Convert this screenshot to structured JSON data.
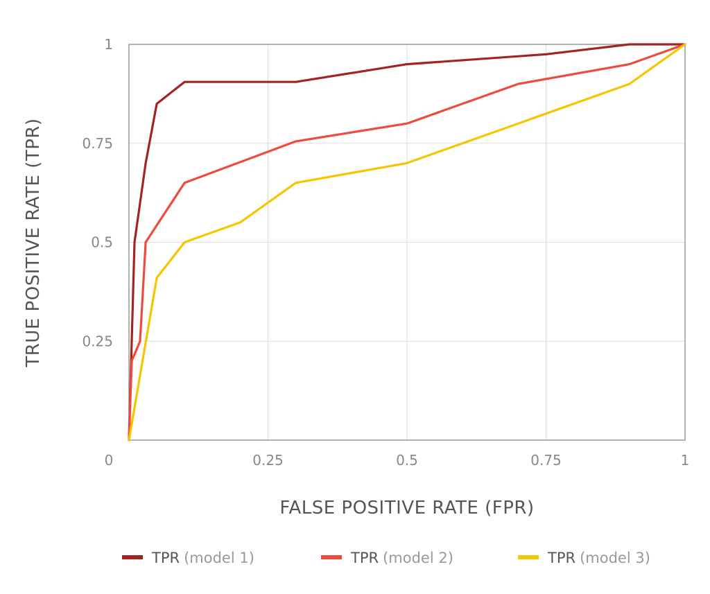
{
  "chart_data": {
    "type": "line",
    "xlabel": "FALSE POSITIVE RATE (FPR)",
    "ylabel": "TRUE POSITIVE RATE (TPR)",
    "xlim": [
      0,
      1
    ],
    "ylim": [
      0,
      1
    ],
    "x_ticks": [
      "0",
      "0.25",
      "0.5",
      "0.75",
      "1"
    ],
    "y_ticks": [
      "0.25",
      "0.5",
      "0.75",
      "1"
    ],
    "grid": true,
    "legend_position": "bottom",
    "series": [
      {
        "name": "TPR",
        "name_suffix": "(model 1)",
        "color": "#a32322",
        "points": [
          [
            0,
            0
          ],
          [
            0.01,
            0.5
          ],
          [
            0.03,
            0.7
          ],
          [
            0.05,
            0.85
          ],
          [
            0.1,
            0.905
          ],
          [
            0.3,
            0.905
          ],
          [
            0.5,
            0.95
          ],
          [
            0.75,
            0.975
          ],
          [
            0.9,
            1
          ],
          [
            1,
            1
          ]
        ]
      },
      {
        "name": "TPR",
        "name_suffix": "(model 2)",
        "color": "#f04a3e",
        "points": [
          [
            0,
            0
          ],
          [
            0.005,
            0.2
          ],
          [
            0.02,
            0.25
          ],
          [
            0.03,
            0.5
          ],
          [
            0.1,
            0.65
          ],
          [
            0.3,
            0.755
          ],
          [
            0.5,
            0.8
          ],
          [
            0.7,
            0.9
          ],
          [
            0.9,
            0.95
          ],
          [
            1,
            1
          ]
        ]
      },
      {
        "name": "TPR",
        "name_suffix": "(model 3)",
        "color": "#f7c500",
        "points": [
          [
            0,
            0
          ],
          [
            0.05,
            0.41
          ],
          [
            0.1,
            0.5
          ],
          [
            0.2,
            0.55
          ],
          [
            0.3,
            0.65
          ],
          [
            0.5,
            0.7
          ],
          [
            0.9,
            0.9
          ],
          [
            1,
            1
          ]
        ]
      }
    ]
  }
}
